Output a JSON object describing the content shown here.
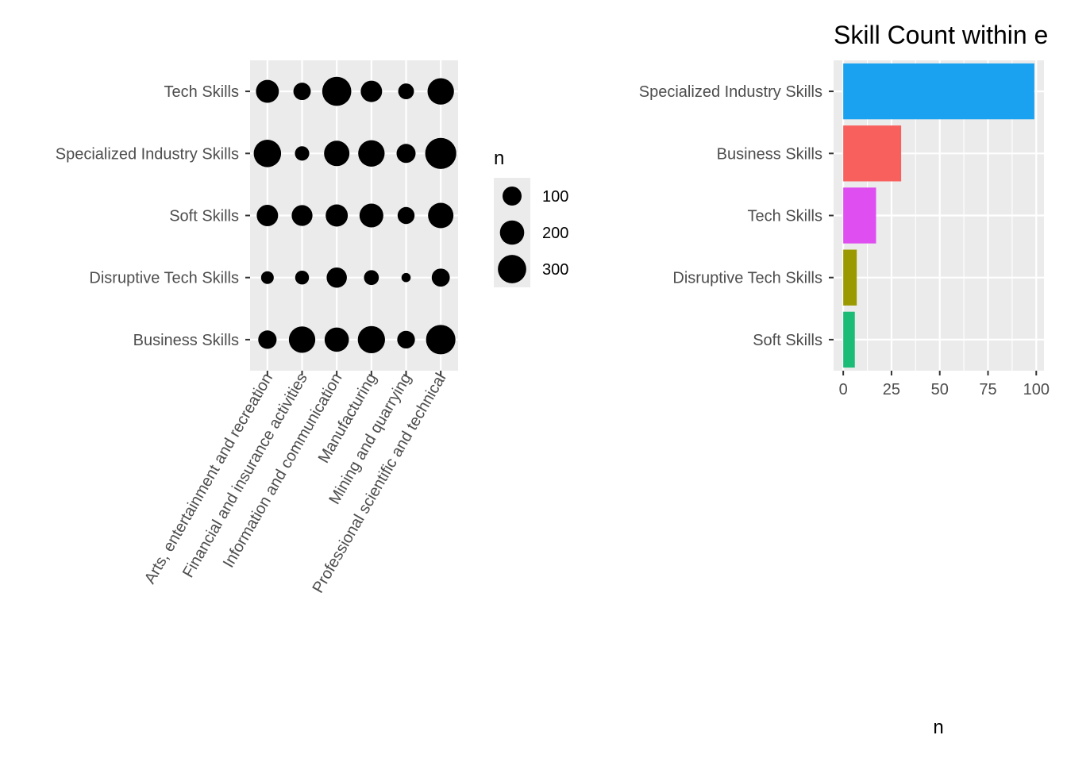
{
  "chart_data": [
    {
      "type": "scatter",
      "subtype": "bubble",
      "title": "",
      "xlabel": "",
      "ylabel": "",
      "x_categories": [
        "Arts, entertainment and recreation",
        "Financial and insurance activities",
        "Information and communication",
        "Manufacturing",
        "Mining and quarrying",
        "Professional scientific and technical"
      ],
      "y_categories": [
        "Business Skills",
        "Disruptive Tech Skills",
        "Soft Skills",
        "Specialized Industry Skills",
        "Tech Skills"
      ],
      "series": [
        {
          "y": "Tech Skills",
          "values": [
            170,
            75,
            320,
            140,
            55,
            250
          ]
        },
        {
          "y": "Specialized Industry Skills",
          "values": [
            275,
            40,
            225,
            250,
            100,
            380
          ]
        },
        {
          "y": "Soft Skills",
          "values": [
            140,
            130,
            155,
            190,
            70,
            225
          ]
        },
        {
          "y": "Disruptive Tech Skills",
          "values": [
            25,
            35,
            120,
            45,
            5,
            85
          ]
        },
        {
          "y": "Business Skills",
          "values": [
            90,
            250,
            200,
            270,
            80,
            330
          ]
        }
      ],
      "size_legend": {
        "title": "n",
        "breaks": [
          100,
          200,
          300
        ],
        "labels": [
          "100",
          "200",
          "300"
        ]
      },
      "grid": true,
      "legend_position": "right"
    },
    {
      "type": "bar",
      "orientation": "horizontal",
      "title": "Skill Count within e",
      "xlabel": "n",
      "ylabel": "",
      "categories": [
        "Specialized Industry Skills",
        "Business Skills",
        "Tech Skills",
        "Disruptive Tech Skills",
        "Soft Skills"
      ],
      "values": [
        99,
        30,
        17,
        7,
        6
      ],
      "colors": [
        "#1aa1f0",
        "#f8605e",
        "#df4ef0",
        "#9a9a00",
        "#1bbc76"
      ],
      "xticks": [
        0,
        25,
        50,
        75,
        100
      ],
      "xtick_labels": [
        "0",
        "25",
        "50",
        "75",
        "100"
      ],
      "xlim": [
        -5,
        104
      ],
      "grid": true,
      "legend": "none"
    }
  ]
}
